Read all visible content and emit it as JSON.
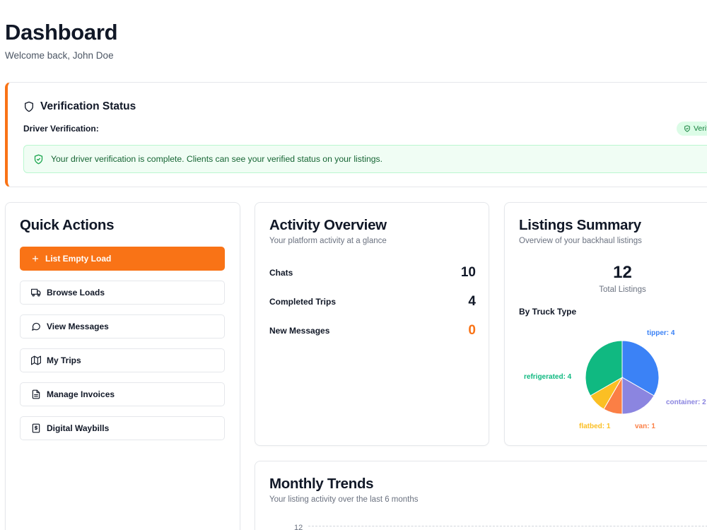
{
  "header": {
    "title": "Dashboard",
    "subtitle": "Welcome back, John Doe"
  },
  "verification": {
    "title": "Verification Status",
    "label": "Driver Verification:",
    "badge": "Verified",
    "message": "Your driver verification is complete. Clients can see your verified status on your listings."
  },
  "quick_actions": {
    "title": "Quick Actions",
    "primary": {
      "label": "List Empty Load",
      "icon": "plus-icon"
    },
    "items": [
      {
        "label": "Browse Loads",
        "icon": "truck-icon"
      },
      {
        "label": "View Messages",
        "icon": "message-circle-icon"
      },
      {
        "label": "My Trips",
        "icon": "map-icon"
      },
      {
        "label": "Manage Invoices",
        "icon": "file-text-icon"
      },
      {
        "label": "Digital Waybills",
        "icon": "receipt-icon"
      }
    ]
  },
  "activity": {
    "title": "Activity Overview",
    "subtitle": "Your platform activity at a glance",
    "rows": [
      {
        "label": "Chats",
        "value": "10"
      },
      {
        "label": "Completed Trips",
        "value": "4"
      },
      {
        "label": "New Messages",
        "value": "0"
      }
    ]
  },
  "listings": {
    "title": "Listings Summary",
    "subtitle": "Overview of your backhaul listings",
    "total": "12",
    "total_label": "Total Listings",
    "by_label": "By Truck Type"
  },
  "chart_data": {
    "type": "pie",
    "slices": [
      {
        "label": "tipper: 4",
        "name": "tipper",
        "value": 4,
        "color": "#3b82f6"
      },
      {
        "label": "container: 2",
        "name": "container",
        "value": 2,
        "color": "#8b85e0"
      },
      {
        "label": "van: 1",
        "name": "van",
        "value": 1,
        "color": "#fb7f45"
      },
      {
        "label": "flatbed: 1",
        "name": "flatbed",
        "value": 1,
        "color": "#fbbf24"
      },
      {
        "label": "refrigerated: 4",
        "name": "refrigerated",
        "value": 4,
        "color": "#10b981"
      }
    ]
  },
  "monthly": {
    "title": "Monthly Trends",
    "subtitle": "Your listing activity over the last 6 months",
    "y_tick_top": "12"
  },
  "colors": {
    "accent": "#f97316",
    "success": "#16a34a"
  }
}
